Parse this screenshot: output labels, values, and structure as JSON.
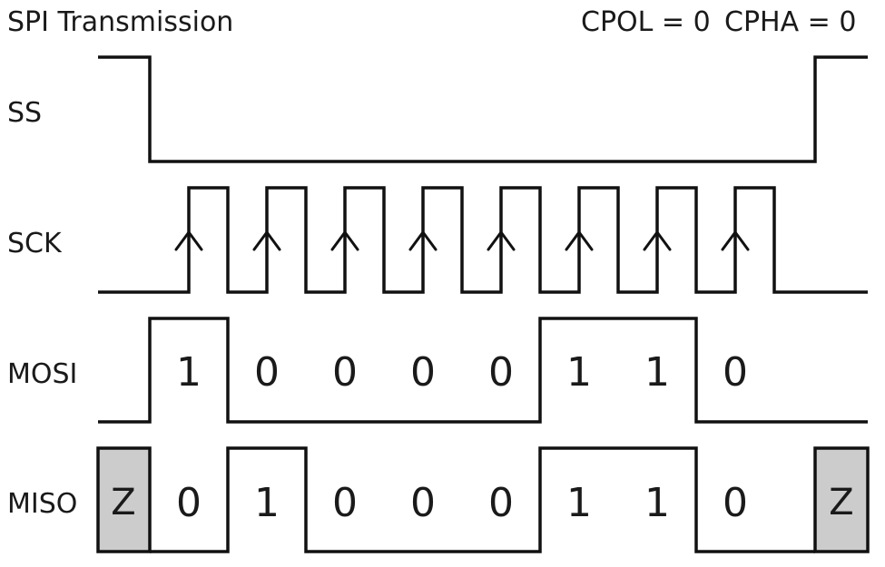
{
  "title": "SPI Transmission",
  "mode": {
    "cpol": "CPOL = 0",
    "cpha": "CPHA = 0"
  },
  "signals": {
    "ss": "SS",
    "sck": "SCK",
    "mosi": "MOSI",
    "miso": "MISO"
  },
  "mosi_bits": [
    "1",
    "0",
    "0",
    "0",
    "0",
    "1",
    "1",
    "0"
  ],
  "miso_bits": [
    "0",
    "1",
    "0",
    "0",
    "0",
    "1",
    "1",
    "0"
  ],
  "high_impedance_label": "Z",
  "colors": {
    "line": "#111111",
    "z_fill": "#cccccc",
    "text": "#1a1a1a"
  }
}
